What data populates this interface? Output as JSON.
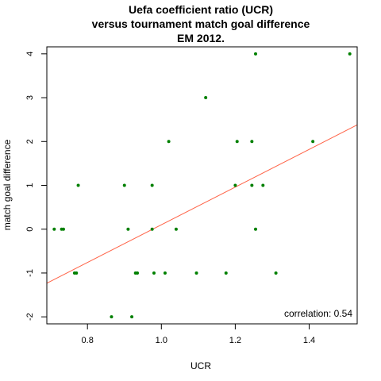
{
  "chart_data": {
    "type": "scatter",
    "title_lines": [
      "Uefa coefficient ratio (UCR)",
      "versus tournament match goal difference",
      "EM 2012."
    ],
    "xlabel": "UCR",
    "ylabel": "match goal difference",
    "xlim": [
      0.69,
      1.53
    ],
    "ylim": [
      -2.16,
      4.16
    ],
    "x_ticks": [
      0.8,
      1.0,
      1.2,
      1.4
    ],
    "x_tick_labels": [
      "0.8",
      "1.0",
      "1.2",
      "1.4"
    ],
    "y_ticks": [
      -2,
      -1,
      0,
      1,
      2,
      3,
      4
    ],
    "y_tick_labels": [
      "-2",
      "-1",
      "0",
      "1",
      "2",
      "3",
      "4"
    ],
    "grid": false,
    "point_color": "#008000",
    "line_color": "#ff6347",
    "points": [
      {
        "x": 0.71,
        "y": 0
      },
      {
        "x": 0.73,
        "y": 0
      },
      {
        "x": 0.735,
        "y": 0
      },
      {
        "x": 0.765,
        "y": -1
      },
      {
        "x": 0.77,
        "y": -1
      },
      {
        "x": 0.775,
        "y": 1
      },
      {
        "x": 0.865,
        "y": -2
      },
      {
        "x": 0.9,
        "y": 1
      },
      {
        "x": 0.91,
        "y": 0
      },
      {
        "x": 0.92,
        "y": -2
      },
      {
        "x": 0.93,
        "y": -1
      },
      {
        "x": 0.935,
        "y": -1
      },
      {
        "x": 0.975,
        "y": 1
      },
      {
        "x": 0.975,
        "y": 0
      },
      {
        "x": 0.98,
        "y": -1
      },
      {
        "x": 1.01,
        "y": -1
      },
      {
        "x": 1.02,
        "y": 2
      },
      {
        "x": 1.04,
        "y": 0
      },
      {
        "x": 1.095,
        "y": -1
      },
      {
        "x": 1.12,
        "y": 3
      },
      {
        "x": 1.175,
        "y": -1
      },
      {
        "x": 1.2,
        "y": 1
      },
      {
        "x": 1.205,
        "y": 2
      },
      {
        "x": 1.245,
        "y": 2
      },
      {
        "x": 1.245,
        "y": 1
      },
      {
        "x": 1.255,
        "y": 4
      },
      {
        "x": 1.255,
        "y": 0
      },
      {
        "x": 1.275,
        "y": 1
      },
      {
        "x": 1.31,
        "y": -1
      },
      {
        "x": 1.41,
        "y": 2
      },
      {
        "x": 1.51,
        "y": 4
      }
    ],
    "regression_line": {
      "intercept": -4.2,
      "slope": 4.3
    },
    "annotation": "correlation: 0.54"
  }
}
